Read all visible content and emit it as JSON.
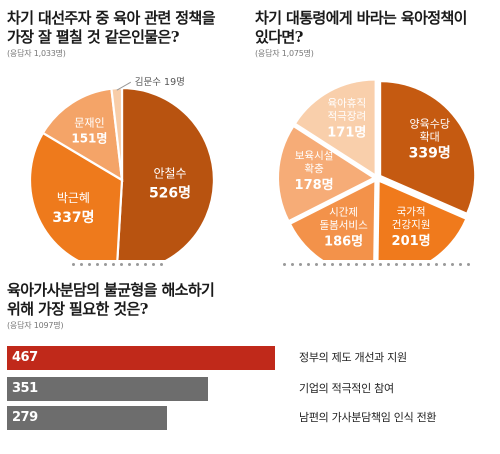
{
  "panel1": {
    "title_line1": "차기 대선주자 중 육아 관련 정책을",
    "title_line2": "가장 잘 펼칠 것 같은인물은?",
    "subtitle": "(응답자 1,033명)"
  },
  "panel2": {
    "title_line1": "차기 대통령에게 바라는 육아정책이",
    "title_line2": "있다면?",
    "subtitle": "(응답자 1,075명)"
  },
  "panel3": {
    "title_line1": "육아가사분담의 불균형을 해소하기",
    "title_line2": "위해 가장 필요한 것은?",
    "subtitle": "(응답자 1097명)"
  },
  "chart_data": [
    {
      "type": "pie",
      "title": "차기 대선주자 중 육아 관련 정책을 가장 잘 펼칠 것 같은인물은?",
      "slices": [
        {
          "name": "안철수",
          "value": 526,
          "value_label": "526명",
          "color": "#b85310"
        },
        {
          "name": "박근혜",
          "value": 337,
          "value_label": "337명",
          "color": "#ee7a1c"
        },
        {
          "name": "문재인",
          "value": 151,
          "value_label": "151명",
          "color": "#f4a468"
        },
        {
          "name": "김문수",
          "value": 19,
          "value_label": "19명",
          "color": "#f8cda8"
        }
      ]
    },
    {
      "type": "pie",
      "title": "차기 대통령에게 바라는 육아정책이 있다면?",
      "slices": [
        {
          "name": "양육수당 확대",
          "name_lines": [
            "양육수당",
            "확대"
          ],
          "value": 339,
          "value_label": "339명",
          "color": "#c55a11"
        },
        {
          "name": "국가적 건강지원",
          "name_lines": [
            "국가적",
            "건강지원"
          ],
          "value": 201,
          "value_label": "201명",
          "color": "#f07a1c"
        },
        {
          "name": "시간제 돌봄서비스",
          "name_lines": [
            "시간제",
            "돌봄서비스"
          ],
          "value": 186,
          "value_label": "186명",
          "color": "#f3924a"
        },
        {
          "name": "보육시설 확충",
          "name_lines": [
            "보육시설",
            "확충"
          ],
          "value": 178,
          "value_label": "178명",
          "color": "#f6ac77"
        },
        {
          "name": "육아휴직 적극장려",
          "name_lines": [
            "육아휴직",
            "적극장려"
          ],
          "value": 171,
          "value_label": "171명",
          "color": "#f9cfab"
        }
      ]
    },
    {
      "type": "bar",
      "orientation": "horizontal",
      "title": "육아가사분담의 불균형을 해소하기 위해 가장 필요한 것은?",
      "categories": [
        "정부의 제도 개선과 지원",
        "기업의 적극적인 참여",
        "남편의 가사분담책임 인식 전환"
      ],
      "values": [
        467,
        351,
        279
      ],
      "value_labels": [
        "467명",
        "351명",
        "279명"
      ],
      "colors": [
        "#c0291a",
        "#6d6d6d",
        "#6d6d6d"
      ]
    }
  ]
}
